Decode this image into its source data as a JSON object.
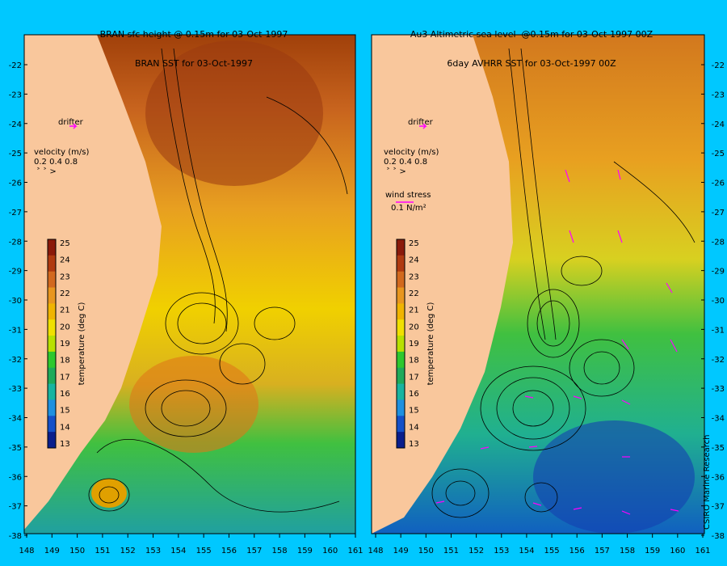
{
  "left_panel": {
    "title_line1": "BRAN sfc height @ 0.15m for 03-Oct-1997",
    "title_line2": "BRAN SST for 03-Oct-1997",
    "drifter_label": "drifter",
    "velocity_label": "velocity (m/s)",
    "velocity_scale": "0.2 0.4 0.8",
    "colorbar_label": "temperature (deg C)"
  },
  "right_panel": {
    "title_line1": "Au3 Altimetric sea level  @0.15m for 03-Oct-1997 00Z",
    "title_line2": "6day AVHRR SST for 03-Oct-1997 00Z",
    "drifter_label": "drifter",
    "velocity_label": "velocity (m/s)",
    "velocity_scale": "0.2 0.4 0.8",
    "wind_label": "wind stress",
    "wind_value": "0.1 N/m²",
    "colorbar_label": "temperature (deg C)"
  },
  "colorbar_ticks": [
    "25",
    "24",
    "23",
    "22",
    "21",
    "20",
    "19",
    "18",
    "17",
    "16",
    "15",
    "14",
    "13"
  ],
  "colorbar_colors": [
    "#8b1a0a",
    "#b03a10",
    "#d2691e",
    "#e8961e",
    "#f0b400",
    "#f0e000",
    "#b8e000",
    "#2ec82e",
    "#1faa5a",
    "#18b4a0",
    "#1e90e0",
    "#1450c8",
    "#0a1e8c"
  ],
  "lat_ticks": [
    "-22",
    "-23",
    "-24",
    "-25",
    "-26",
    "-27",
    "-28",
    "-29",
    "-30",
    "-31",
    "-32",
    "-33",
    "-34",
    "-35",
    "-36",
    "-37",
    "-38"
  ],
  "lon_ticks": [
    "148",
    "149",
    "150",
    "151",
    "152",
    "153",
    "154",
    "155",
    "156",
    "157",
    "158",
    "159",
    "160",
    "161"
  ],
  "credit": "CSIRO Marine Research",
  "colors": {
    "background": "#00c8ff",
    "land": "#f9c79c",
    "arrows": "#ff00ff"
  }
}
